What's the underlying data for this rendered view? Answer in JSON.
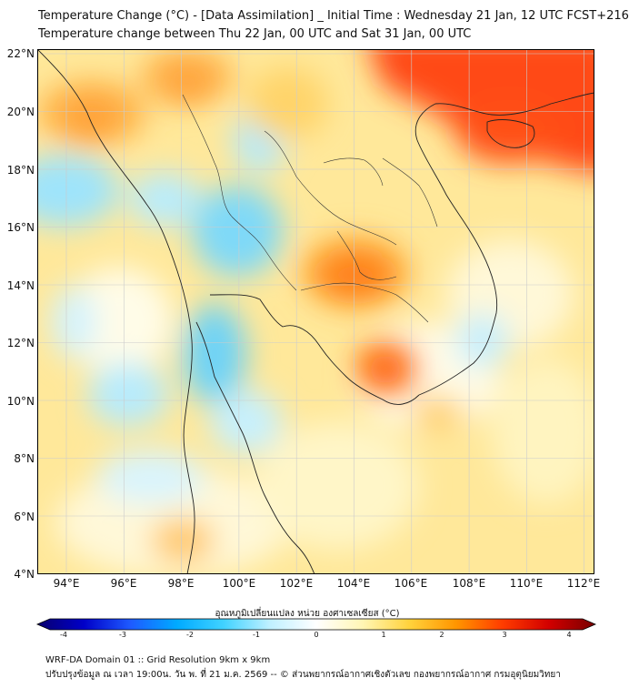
{
  "header": {
    "title_line1": "Temperature Change (°C) - [Data Assimilation] _ Initial Time : Wednesday 21 Jan, 12 UTC FCST+216",
    "title_line2": "Temperature change between Thu 22 Jan, 00 UTC and Sat 31 Jan, 00 UTC"
  },
  "map": {
    "lat_labels": [
      "22°N",
      "20°N",
      "18°N",
      "16°N",
      "14°N",
      "12°N",
      "10°N",
      "8°N",
      "6°N",
      "4°N"
    ],
    "lon_labels": [
      "94°E",
      "96°E",
      "98°E",
      "100°E",
      "102°E",
      "104°E",
      "106°E",
      "108°E",
      "110°E",
      "112°E"
    ]
  },
  "colorbar": {
    "label": "อุณหภูมิเปลี่ยนแปลง หน่วย องศาเซลเซียส (°C)",
    "ticks": [
      "-4",
      "-3",
      "-2",
      "-1",
      "0",
      "1",
      "2",
      "3",
      "4"
    ],
    "colors": [
      "#08006e",
      "#0000c8",
      "#1e5aff",
      "#00aaff",
      "#40d2ff",
      "#bff0ff",
      "#ffffff",
      "#fff6b4",
      "#ffd23c",
      "#ff9600",
      "#ff3c00",
      "#d20000",
      "#780000"
    ]
  },
  "footer": {
    "line1": "WRF-DA Domain 01 :: Grid Resolution 9km x 9km",
    "line2": "ปรับปรุงข้อมูล ณ เวลา 19:00น. วัน พ. ที่ 21 ม.ค. 2569 -- © ส่วนพยากรณ์อากาศเชิงตัวเลข กองพยากรณ์อากาศ กรมอุตุนิยมวิทยา"
  }
}
